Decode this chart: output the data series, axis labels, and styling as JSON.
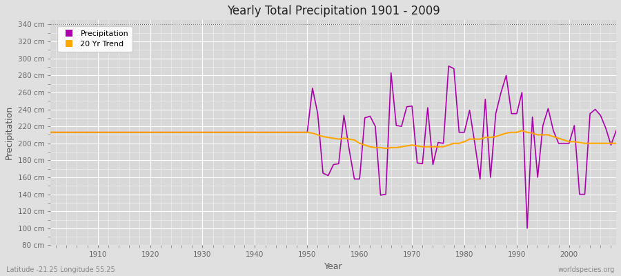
{
  "title": "Yearly Total Precipitation 1901 - 2009",
  "xlabel": "Year",
  "ylabel": "Precipitation",
  "subtitle_left": "Latitude -21.25 Longitude 55.25",
  "subtitle_right": "worldspecies.org",
  "ylim": [
    80,
    345
  ],
  "xlim": [
    1901,
    2009
  ],
  "yticks": [
    80,
    100,
    120,
    140,
    160,
    180,
    200,
    220,
    240,
    260,
    280,
    300,
    320,
    340
  ],
  "xticks": [
    1910,
    1920,
    1930,
    1940,
    1950,
    1960,
    1970,
    1980,
    1990,
    2000
  ],
  "precip_color": "#AA00AA",
  "trend_color": "#FFA500",
  "bg_color": "#E0E0E0",
  "plot_bg_color": "#D8D8D8",
  "legend_labels": [
    "Precipitation",
    "20 Yr Trend"
  ],
  "years": [
    1901,
    1902,
    1903,
    1904,
    1905,
    1906,
    1907,
    1908,
    1909,
    1910,
    1911,
    1912,
    1913,
    1914,
    1915,
    1916,
    1917,
    1918,
    1919,
    1920,
    1921,
    1922,
    1923,
    1924,
    1925,
    1926,
    1927,
    1928,
    1929,
    1930,
    1931,
    1932,
    1933,
    1934,
    1935,
    1936,
    1937,
    1938,
    1939,
    1940,
    1941,
    1942,
    1943,
    1944,
    1945,
    1946,
    1947,
    1948,
    1949,
    1950,
    1951,
    1952,
    1953,
    1954,
    1955,
    1956,
    1957,
    1958,
    1959,
    1960,
    1961,
    1962,
    1963,
    1964,
    1965,
    1966,
    1967,
    1968,
    1969,
    1970,
    1971,
    1972,
    1973,
    1974,
    1975,
    1976,
    1977,
    1978,
    1979,
    1980,
    1981,
    1982,
    1983,
    1984,
    1985,
    1986,
    1987,
    1988,
    1989,
    1990,
    1991,
    1992,
    1993,
    1994,
    1995,
    1996,
    1997,
    1998,
    1999,
    2000,
    2001,
    2002,
    2003,
    2004,
    2005,
    2006,
    2007,
    2008,
    2009
  ],
  "precipitation": [
    213,
    213,
    213,
    213,
    213,
    213,
    213,
    213,
    213,
    213,
    213,
    213,
    213,
    213,
    213,
    213,
    213,
    213,
    213,
    213,
    213,
    213,
    213,
    213,
    213,
    213,
    213,
    213,
    213,
    213,
    213,
    213,
    213,
    213,
    213,
    213,
    213,
    213,
    213,
    213,
    213,
    213,
    213,
    213,
    213,
    213,
    213,
    213,
    213,
    213,
    265,
    235,
    165,
    162,
    175,
    176,
    233,
    193,
    158,
    158,
    230,
    232,
    220,
    139,
    140,
    283,
    221,
    220,
    243,
    244,
    177,
    176,
    242,
    175,
    201,
    200,
    291,
    288,
    213,
    213,
    239,
    200,
    158,
    252,
    160,
    235,
    260,
    280,
    235,
    235,
    260,
    100,
    231,
    160,
    221,
    241,
    215,
    200,
    200,
    200,
    221,
    140,
    140,
    235,
    240,
    233,
    218,
    198,
    215
  ],
  "trend": [
    213,
    213,
    213,
    213,
    213,
    213,
    213,
    213,
    213,
    213,
    213,
    213,
    213,
    213,
    213,
    213,
    213,
    213,
    213,
    213,
    213,
    213,
    213,
    213,
    213,
    213,
    213,
    213,
    213,
    213,
    213,
    213,
    213,
    213,
    213,
    213,
    213,
    213,
    213,
    213,
    213,
    213,
    213,
    213,
    213,
    213,
    213,
    213,
    213,
    213,
    212,
    210,
    208,
    207,
    206,
    205,
    206,
    205,
    204,
    200,
    198,
    196,
    195,
    195,
    194,
    195,
    195,
    196,
    197,
    198,
    197,
    196,
    196,
    196,
    196,
    196,
    198,
    200,
    200,
    202,
    205,
    205,
    205,
    207,
    207,
    208,
    210,
    212,
    213,
    213,
    215,
    213,
    212,
    210,
    210,
    210,
    208,
    206,
    204,
    202,
    202,
    201,
    200,
    200,
    200,
    200,
    200,
    200,
    200
  ]
}
